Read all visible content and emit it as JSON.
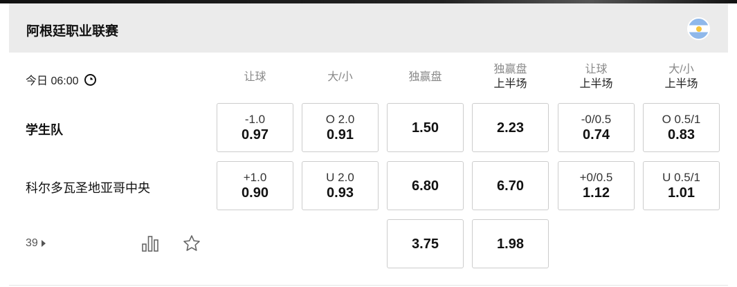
{
  "league": {
    "title": "阿根廷职业联赛",
    "flag": "argentina-flag"
  },
  "match": {
    "time": "今日 06:00",
    "home": "学生队",
    "away": "科尔多瓦圣地亚哥中央",
    "more_count": "39"
  },
  "columns": [
    {
      "main": "让球",
      "sub": ""
    },
    {
      "main": "大/小",
      "sub": ""
    },
    {
      "main": "独赢盘",
      "sub": ""
    },
    {
      "main": "独赢盘",
      "sub": "上半场"
    },
    {
      "main": "让球",
      "sub": "上半场"
    },
    {
      "main": "大/小",
      "sub": "上半场"
    }
  ],
  "rows": [
    [
      {
        "line": "-1.0",
        "odd": "0.97"
      },
      {
        "line": "O 2.0",
        "odd": "0.91"
      },
      {
        "line": "",
        "odd": "1.50"
      },
      {
        "line": "",
        "odd": "2.23"
      },
      {
        "line": "-0/0.5",
        "odd": "0.74"
      },
      {
        "line": "O 0.5/1",
        "odd": "0.83"
      }
    ],
    [
      {
        "line": "+1.0",
        "odd": "0.90"
      },
      {
        "line": "U 2.0",
        "odd": "0.93"
      },
      {
        "line": "",
        "odd": "6.80"
      },
      {
        "line": "",
        "odd": "6.70"
      },
      {
        "line": "+0/0.5",
        "odd": "1.12"
      },
      {
        "line": "U 0.5/1",
        "odd": "1.01"
      }
    ],
    [
      null,
      null,
      {
        "line": "",
        "odd": "3.75"
      },
      {
        "line": "",
        "odd": "1.98"
      },
      null,
      null
    ]
  ]
}
